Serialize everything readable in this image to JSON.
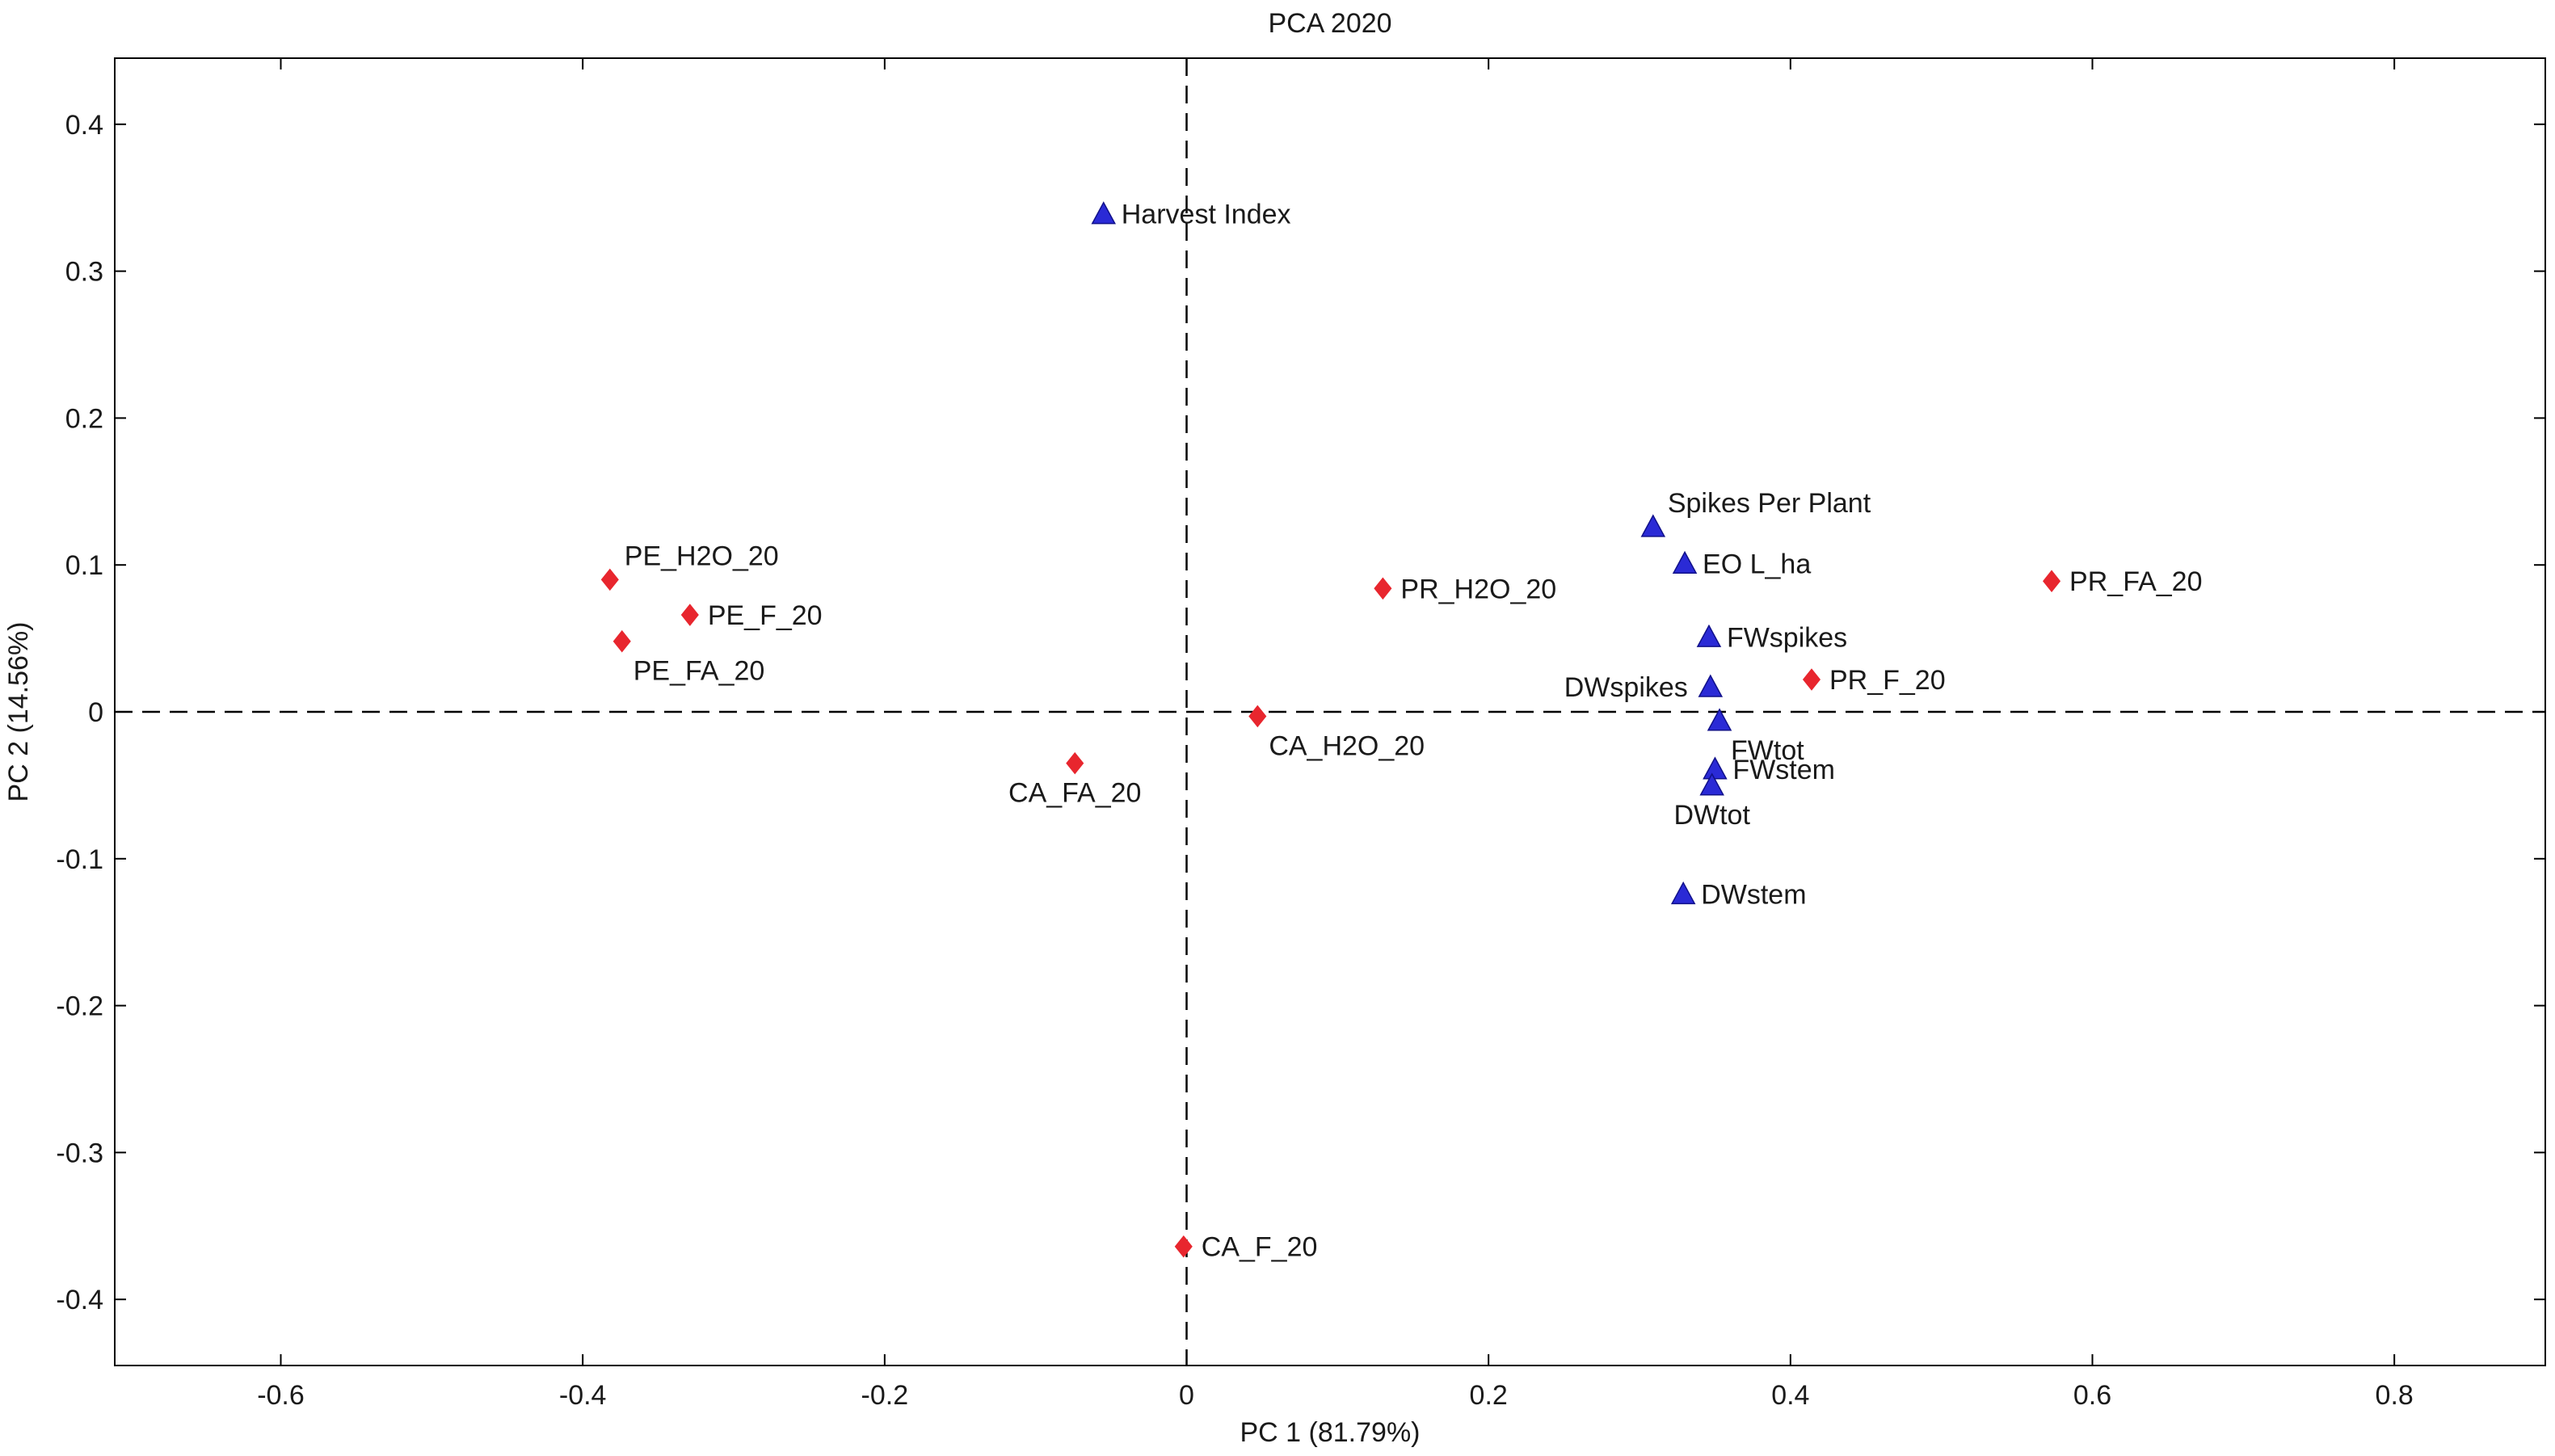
{
  "chart_data": {
    "type": "scatter",
    "title": "PCA 2020",
    "xlabel": "PC 1 (81.79%)",
    "ylabel": "PC 2 (14.56%)",
    "xlim": [
      -0.71,
      0.9
    ],
    "ylim": [
      -0.445,
      0.445
    ],
    "xticks": [
      -0.6,
      -0.4,
      -0.2,
      0,
      0.2,
      0.4,
      0.6,
      0.8
    ],
    "xtick_labels": [
      "-0.6",
      "-0.4",
      "-0.2",
      "0",
      "0.2",
      "0.4",
      "0.6",
      "0.8"
    ],
    "yticks": [
      -0.4,
      -0.3,
      -0.2,
      -0.1,
      0,
      0.1,
      0.2,
      0.3,
      0.4
    ],
    "ytick_labels": [
      "-0.4",
      "-0.3",
      "-0.2",
      "-0.1",
      "0",
      "0.1",
      "0.2",
      "0.3",
      "0.4"
    ],
    "grid": false,
    "reference_lines": {
      "x": 0,
      "y": 0,
      "style": "dashed"
    },
    "colors": {
      "observations": "#e8262e",
      "variables": "#2a2ad6",
      "axes": "#000000"
    },
    "series": [
      {
        "name": "observations",
        "marker": "diamond",
        "points": [
          {
            "label": "PE_H2O_20",
            "x": -0.382,
            "y": 0.09,
            "anchor": "above-right"
          },
          {
            "label": "PE_F_20",
            "x": -0.329,
            "y": 0.066,
            "anchor": "right"
          },
          {
            "label": "PE_FA_20",
            "x": -0.374,
            "y": 0.048,
            "anchor": "below-right"
          },
          {
            "label": "PR_H2O_20",
            "x": 0.13,
            "y": 0.084,
            "anchor": "right"
          },
          {
            "label": "PR_FA_20",
            "x": 0.573,
            "y": 0.089,
            "anchor": "right"
          },
          {
            "label": "PR_F_20",
            "x": 0.414,
            "y": 0.022,
            "anchor": "right"
          },
          {
            "label": "CA_H2O_20",
            "x": 0.047,
            "y": -0.003,
            "anchor": "below-right"
          },
          {
            "label": "CA_FA_20",
            "x": -0.074,
            "y": -0.035,
            "anchor": "below"
          },
          {
            "label": "CA_F_20",
            "x": -0.002,
            "y": -0.364,
            "anchor": "right"
          }
        ]
      },
      {
        "name": "variables",
        "marker": "triangle",
        "points": [
          {
            "label": "Harvest Index",
            "x": -0.055,
            "y": 0.339,
            "anchor": "right"
          },
          {
            "label": "Spikes Per Plant",
            "x": 0.309,
            "y": 0.126,
            "anchor": "above-right"
          },
          {
            "label": "EO L_ha",
            "x": 0.33,
            "y": 0.101,
            "anchor": "right"
          },
          {
            "label": "FWspikes",
            "x": 0.346,
            "y": 0.051,
            "anchor": "right"
          },
          {
            "label": "DWspikes",
            "x": 0.347,
            "y": 0.017,
            "anchor": "left"
          },
          {
            "label": "FWtot",
            "x": 0.353,
            "y": -0.006,
            "anchor": "below-right"
          },
          {
            "label": "FWstem",
            "x": 0.35,
            "y": -0.039,
            "anchor": "right"
          },
          {
            "label": "DWtot",
            "x": 0.348,
            "y": -0.05,
            "anchor": "below"
          },
          {
            "label": "DWstem",
            "x": 0.329,
            "y": -0.124,
            "anchor": "right"
          }
        ]
      }
    ]
  }
}
